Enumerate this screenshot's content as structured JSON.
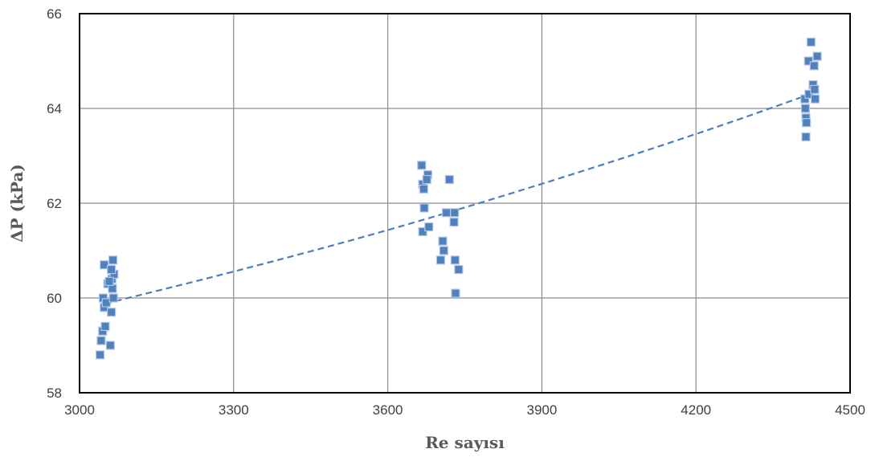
{
  "chart_data": {
    "type": "scatter",
    "title": "",
    "xlabel": "Re sayısı",
    "ylabel": "ΔP (kPa)",
    "xlim": [
      3000,
      4500
    ],
    "ylim": [
      58,
      66
    ],
    "x_ticks": [
      3000,
      3300,
      3600,
      3900,
      4200,
      4500
    ],
    "y_ticks": [
      58,
      60,
      62,
      64,
      66
    ],
    "grid": true,
    "legend": "none",
    "series": [
      {
        "color": "#4f81bd",
        "marker": "square",
        "points": [
          {
            "x": 3040,
            "y": 58.8
          },
          {
            "x": 3042,
            "y": 59.1
          },
          {
            "x": 3045,
            "y": 59.3
          },
          {
            "x": 3050,
            "y": 59.4
          },
          {
            "x": 3048,
            "y": 59.8
          },
          {
            "x": 3046,
            "y": 60.0
          },
          {
            "x": 3052,
            "y": 59.9
          },
          {
            "x": 3055,
            "y": 60.3
          },
          {
            "x": 3048,
            "y": 60.7
          },
          {
            "x": 3060,
            "y": 59.0
          },
          {
            "x": 3062,
            "y": 59.7
          },
          {
            "x": 3066,
            "y": 60.0
          },
          {
            "x": 3064,
            "y": 60.2
          },
          {
            "x": 3063,
            "y": 60.4
          },
          {
            "x": 3067,
            "y": 60.5
          },
          {
            "x": 3062,
            "y": 60.6
          },
          {
            "x": 3065,
            "y": 60.8
          },
          {
            "x": 3058,
            "y": 60.35
          },
          {
            "x": 3666,
            "y": 62.8
          },
          {
            "x": 3668,
            "y": 62.4
          },
          {
            "x": 3670,
            "y": 62.3
          },
          {
            "x": 3671,
            "y": 61.9
          },
          {
            "x": 3668,
            "y": 61.4
          },
          {
            "x": 3678,
            "y": 62.6
          },
          {
            "x": 3676,
            "y": 62.5
          },
          {
            "x": 3680,
            "y": 61.5
          },
          {
            "x": 3703,
            "y": 60.8
          },
          {
            "x": 3707,
            "y": 61.2
          },
          {
            "x": 3709,
            "y": 61.0
          },
          {
            "x": 3714,
            "y": 61.8
          },
          {
            "x": 3720,
            "y": 62.5
          },
          {
            "x": 3730,
            "y": 61.8
          },
          {
            "x": 3729,
            "y": 61.6
          },
          {
            "x": 3731,
            "y": 60.8
          },
          {
            "x": 3738,
            "y": 60.6
          },
          {
            "x": 3732,
            "y": 60.1
          },
          {
            "x": 4412,
            "y": 64.2
          },
          {
            "x": 4413,
            "y": 64.0
          },
          {
            "x": 4414,
            "y": 63.8
          },
          {
            "x": 4415,
            "y": 63.7
          },
          {
            "x": 4414,
            "y": 63.4
          },
          {
            "x": 4420,
            "y": 64.3
          },
          {
            "x": 4419,
            "y": 65.0
          },
          {
            "x": 4424,
            "y": 65.4
          },
          {
            "x": 4428,
            "y": 64.5
          },
          {
            "x": 4430,
            "y": 64.9
          },
          {
            "x": 4432,
            "y": 64.2
          },
          {
            "x": 4436,
            "y": 65.1
          },
          {
            "x": 4431,
            "y": 64.4
          }
        ]
      }
    ],
    "trendline": {
      "style": "dashed",
      "color": "#4a7ebb",
      "points": [
        {
          "x": 3050,
          "y": 59.88
        },
        {
          "x": 3300,
          "y": 60.55
        },
        {
          "x": 3600,
          "y": 61.42
        },
        {
          "x": 3900,
          "y": 62.4
        },
        {
          "x": 4200,
          "y": 63.45
        },
        {
          "x": 4430,
          "y": 64.33
        }
      ]
    }
  }
}
